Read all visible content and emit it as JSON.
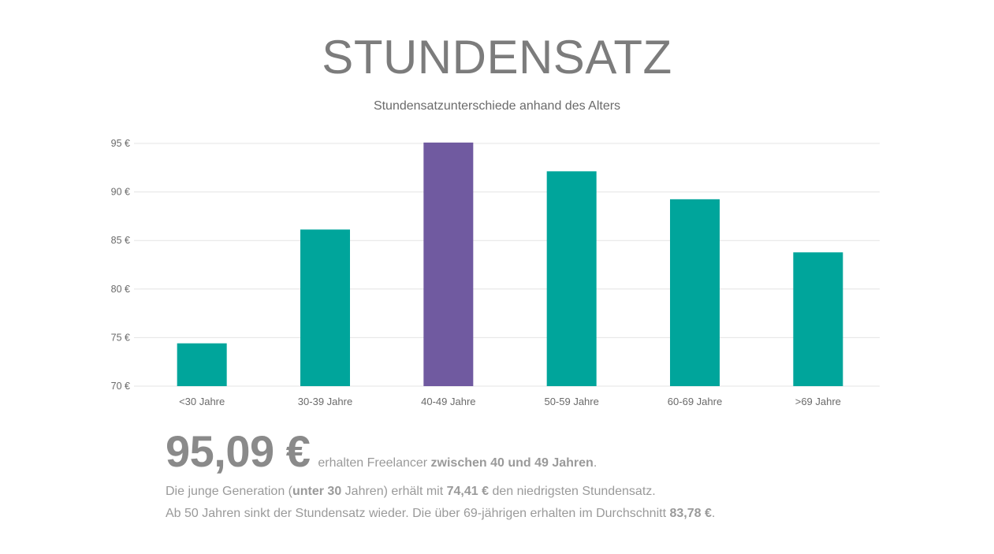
{
  "title": "STUNDENSATZ",
  "summary": {
    "big_value": "95,09 €",
    "line1_pre": "erhalten Freelancer ",
    "line1_bold": "zwischen 40 und 49 Jahren",
    "line1_post": ".",
    "line2_pre": "Die junge Generation (",
    "line2_bold1": "unter 30",
    "line2_mid1": " Jahren) erhält mit ",
    "line2_bold2": "74,41 €",
    "line2_post": " den niedrigsten Stundensatz.",
    "line3_pre": "Ab 50 Jahren sinkt der Stundensatz wieder. Die über 69-jährigen erhalten im Durchschnitt ",
    "line3_bold": "83,78 €",
    "line3_post": "."
  },
  "colors": {
    "bar_default": "#00a59b",
    "bar_highlight": "#705aa0",
    "grid": "#e4e4e4"
  },
  "chart_data": {
    "type": "bar",
    "title": "",
    "subtitle": "Stundensatzunterschiede anhand des Alters",
    "xlabel": "",
    "ylabel": "",
    "categories": [
      "<30 Jahre",
      "30-39 Jahre",
      "40-49 Jahre",
      "50-59 Jahre",
      "60-69 Jahre",
      ">69 Jahre"
    ],
    "values": [
      74.41,
      86.13,
      95.09,
      92.13,
      89.25,
      83.78
    ],
    "highlight_index": 2,
    "ylim": [
      70,
      95
    ],
    "yticks": [
      70,
      75,
      80,
      85,
      90,
      95
    ],
    "ytick_labels": [
      "70 €",
      "75 €",
      "80 €",
      "85 €",
      "90 €",
      "95 €"
    ],
    "grid": true,
    "legend": "none"
  }
}
